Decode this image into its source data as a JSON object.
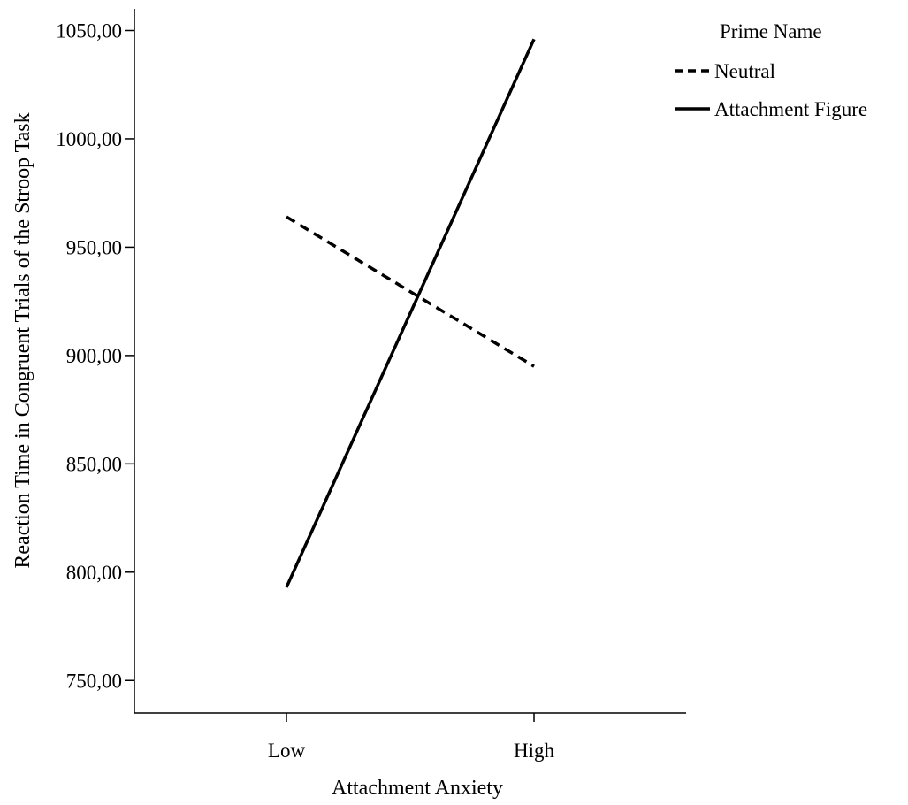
{
  "chart_data": {
    "type": "line",
    "xlabel": "Attachment Anxiety",
    "ylabel": "Reaction Time in Congruent Trials of the Stroop Task",
    "categories": [
      "Low",
      "High"
    ],
    "ylim": [
      735,
      1060
    ],
    "yticks": [
      750,
      800,
      850,
      900,
      950,
      1000,
      1050
    ],
    "ytick_labels": [
      "750,00",
      "800,00",
      "850,00",
      "900,00",
      "950,00",
      "1000,00",
      "1050,00"
    ],
    "legend": {
      "title": "Prime Name",
      "placement": "top-right, outside plot"
    },
    "series": [
      {
        "name": "Neutral",
        "values": [
          964,
          895
        ],
        "style": "dashed",
        "color": "#000000"
      },
      {
        "name": "Attachment Figure",
        "values": [
          793,
          1046
        ],
        "style": "solid",
        "color": "#000000"
      }
    ],
    "grid": false
  }
}
